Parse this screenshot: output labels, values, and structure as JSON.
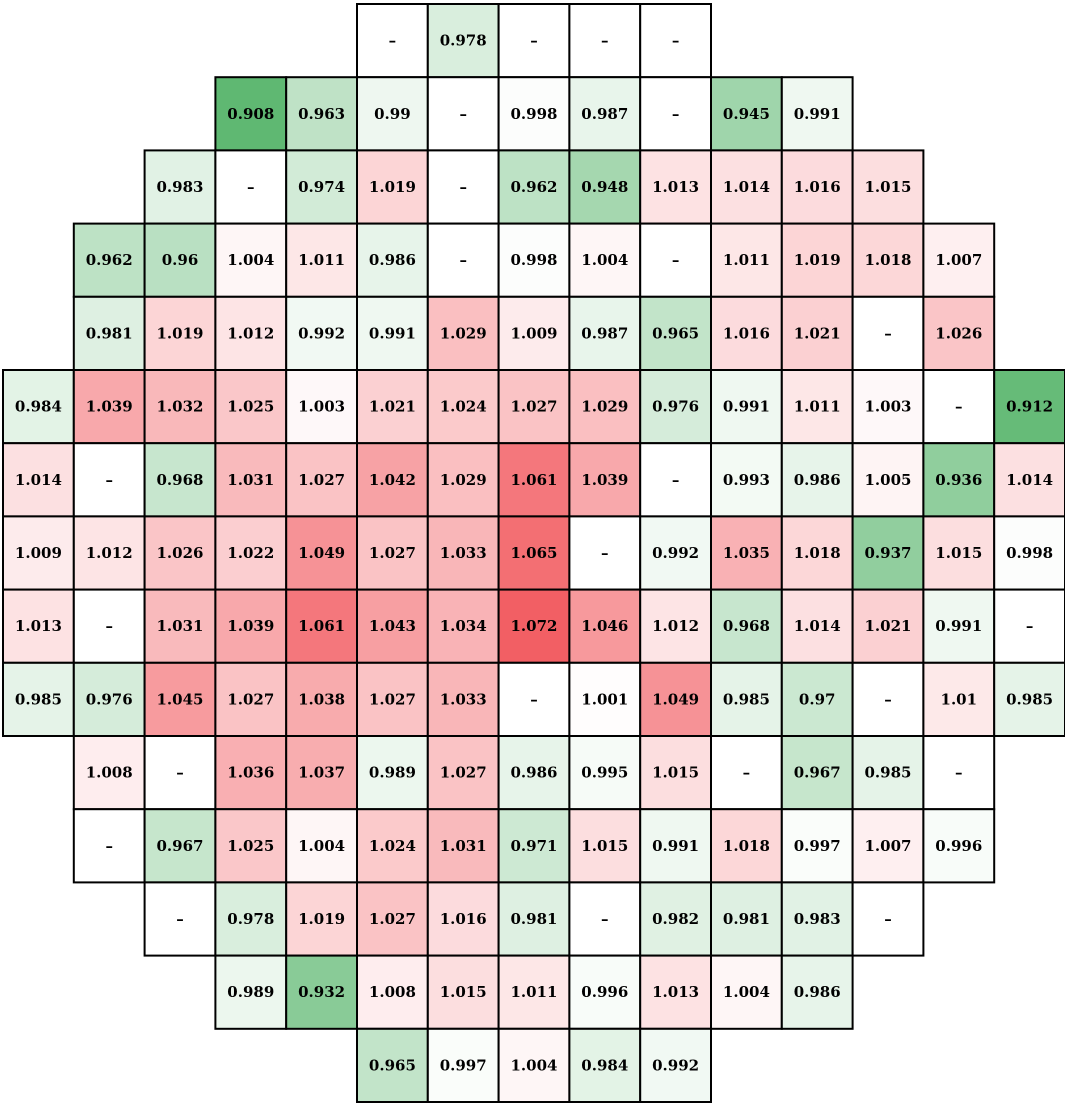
{
  "chart_data": {
    "type": "heatmap",
    "title": "",
    "missing_label": "–",
    "color_scale": {
      "neutral": 1.0,
      "low_color": "#5fb872",
      "high_color": "#f25f64",
      "neutral_color": "#ffffff",
      "low_extreme": 0.908,
      "high_extreme": 1.072
    },
    "rows": [
      {
        "start": 5,
        "values": [
          null,
          0.978,
          null,
          null,
          null
        ]
      },
      {
        "start": 3,
        "values": [
          0.908,
          0.963,
          0.99,
          null,
          0.998,
          0.987,
          null,
          0.945,
          0.991
        ]
      },
      {
        "start": 2,
        "values": [
          0.983,
          null,
          0.974,
          1.019,
          null,
          0.962,
          0.948,
          1.013,
          1.014,
          1.016,
          1.015
        ]
      },
      {
        "start": 1,
        "values": [
          0.962,
          0.96,
          1.004,
          1.011,
          0.986,
          null,
          0.998,
          1.004,
          null,
          1.011,
          1.019,
          1.018,
          1.007
        ]
      },
      {
        "start": 1,
        "values": [
          0.981,
          1.019,
          1.012,
          0.992,
          0.991,
          1.029,
          1.009,
          0.987,
          0.965,
          1.016,
          1.021,
          null,
          1.026
        ]
      },
      {
        "start": 0,
        "values": [
          0.984,
          1.039,
          1.032,
          1.025,
          1.003,
          1.021,
          1.024,
          1.027,
          1.029,
          0.976,
          0.991,
          1.011,
          1.003,
          null,
          0.912
        ]
      },
      {
        "start": 0,
        "values": [
          1.014,
          null,
          0.968,
          1.031,
          1.027,
          1.042,
          1.029,
          1.061,
          1.039,
          null,
          0.993,
          0.986,
          1.005,
          0.936,
          1.014
        ]
      },
      {
        "start": 0,
        "values": [
          1.009,
          1.012,
          1.026,
          1.022,
          1.049,
          1.027,
          1.033,
          1.065,
          null,
          0.992,
          1.035,
          1.018,
          0.937,
          1.015,
          0.998
        ]
      },
      {
        "start": 0,
        "values": [
          1.013,
          null,
          1.031,
          1.039,
          1.061,
          1.043,
          1.034,
          1.072,
          1.046,
          1.012,
          0.968,
          1.014,
          1.021,
          0.991,
          null
        ]
      },
      {
        "start": 0,
        "values": [
          0.985,
          0.976,
          1.045,
          1.027,
          1.038,
          1.027,
          1.033,
          null,
          1.001,
          1.049,
          0.985,
          0.97,
          null,
          1.01,
          0.985
        ]
      },
      {
        "start": 1,
        "values": [
          1.008,
          null,
          1.036,
          1.037,
          0.989,
          1.027,
          0.986,
          0.995,
          1.015,
          null,
          0.967,
          0.985,
          null
        ]
      },
      {
        "start": 1,
        "values": [
          null,
          0.967,
          1.025,
          1.004,
          1.024,
          1.031,
          0.971,
          1.015,
          0.991,
          1.018,
          0.997,
          1.007,
          0.996
        ]
      },
      {
        "start": 2,
        "values": [
          null,
          0.978,
          1.019,
          1.027,
          1.016,
          0.981,
          null,
          0.982,
          0.981,
          0.983,
          null
        ]
      },
      {
        "start": 3,
        "values": [
          0.989,
          0.932,
          1.008,
          1.015,
          1.011,
          0.996,
          1.013,
          1.004,
          0.986
        ]
      },
      {
        "start": 5,
        "values": [
          0.965,
          0.997,
          1.004,
          0.984,
          0.992
        ]
      }
    ]
  }
}
